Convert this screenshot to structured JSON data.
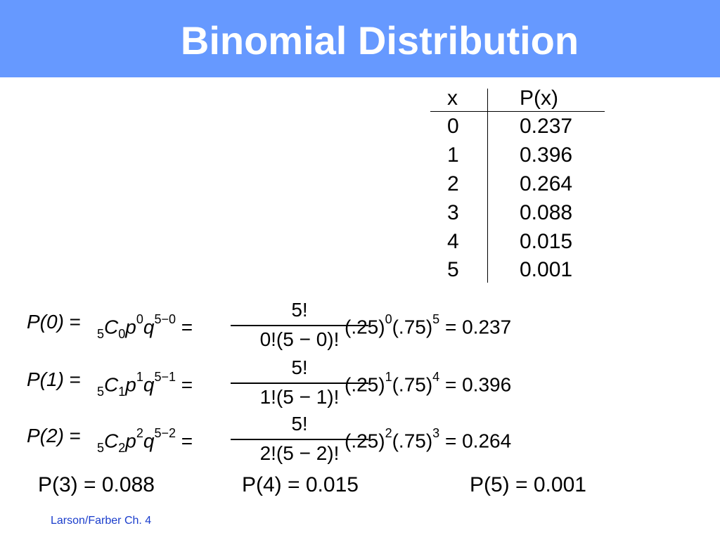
{
  "title": "Binomial Distribution",
  "table": {
    "headers": [
      "x",
      "P(x)"
    ],
    "rows": [
      {
        "x": "0",
        "p": "0.237"
      },
      {
        "x": "1",
        "p": "0.396"
      },
      {
        "x": "2",
        "p": "0.264"
      },
      {
        "x": "3",
        "p": "0.088"
      },
      {
        "x": "4",
        "p": "0.015"
      },
      {
        "x": "5",
        "p": "0.001"
      }
    ]
  },
  "formulas": [
    {
      "lhs": "P(0)",
      "k": "0",
      "q_exp": "5−0",
      "numerator": "5!",
      "denominator": "0!(5 − 0)!",
      "p_pow": "0",
      "q_pow": "5",
      "result": "0.237"
    },
    {
      "lhs": "P(1)",
      "k": "1",
      "q_exp": "5−1",
      "numerator": "5!",
      "denominator": "1!(5 − 1)!",
      "p_pow": "1",
      "q_pow": "4",
      "result": "0.396"
    },
    {
      "lhs": "P(2)",
      "k": "2",
      "q_exp": "5−2",
      "numerator": "5!",
      "denominator": "2!(5 − 2)!",
      "p_pow": "2",
      "q_pow": "3",
      "result": "0.264"
    }
  ],
  "results": [
    "P(3) = 0.088",
    "P(4) = 0.015",
    "P(5) = 0.001"
  ],
  "footer": "Larson/Farber Ch. 4",
  "colors": {
    "header": "#6699ff",
    "title_text": "#ffffff",
    "footer_text": "#1a3dcc"
  }
}
